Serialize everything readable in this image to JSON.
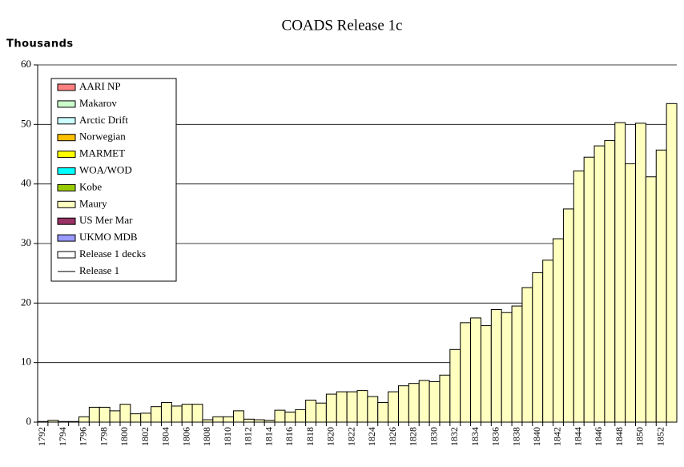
{
  "chart_data": {
    "type": "bar",
    "title": "COADS Release 1c",
    "y_axis_label": "Thousands",
    "categories": [
      "1792",
      null,
      "1794",
      null,
      "1796",
      null,
      "1798",
      null,
      "1800",
      null,
      "1802",
      null,
      "1804",
      null,
      "1806",
      null,
      "1808",
      null,
      "1810",
      null,
      "1812",
      null,
      "1814",
      null,
      "1816",
      null,
      "1818",
      null,
      "1820",
      null,
      "1822",
      null,
      "1824",
      null,
      "1826",
      null,
      "1828",
      null,
      "1830",
      null,
      "1832",
      null,
      "1834",
      null,
      "1836",
      null,
      "1838",
      null,
      "1840",
      null,
      "1842",
      null,
      "1844",
      null,
      "1846",
      null,
      "1848",
      null,
      "1850",
      null,
      "1852",
      null
    ],
    "series": [
      {
        "name": "Maury",
        "color": "#ffffc0",
        "values": [
          0.1,
          0.3,
          0.1,
          0.1,
          0.9,
          2.5,
          2.5,
          1.9,
          3.0,
          1.4,
          1.5,
          2.6,
          3.3,
          2.7,
          3.0,
          3.0,
          0.4,
          0.9,
          0.9,
          1.9,
          0.5,
          0.4,
          0.3,
          2.0,
          1.7,
          2.1,
          3.7,
          3.2,
          4.7,
          5.1,
          5.1,
          5.3,
          4.3,
          3.3,
          5.1,
          6.1,
          6.5,
          7.0,
          6.8,
          7.9,
          12.2,
          16.7,
          17.5,
          16.2,
          18.9,
          18.4,
          19.5,
          22.6,
          25.1,
          27.2,
          30.8,
          35.8,
          42.2,
          44.5,
          46.4,
          47.3,
          50.3,
          43.4,
          50.2,
          41.2,
          45.7,
          53.5
        ]
      }
    ],
    "legend": [
      {
        "name": "AARI NP",
        "color": "#ff8080",
        "kind": "box"
      },
      {
        "name": "Makarov",
        "color": "#ccffcc",
        "kind": "box"
      },
      {
        "name": "Arctic Drift",
        "color": "#ccffff",
        "kind": "box"
      },
      {
        "name": "Norwegian",
        "color": "#ffc000",
        "kind": "box"
      },
      {
        "name": "MARMET",
        "color": "#ffff00",
        "kind": "box"
      },
      {
        "name": "WOA/WOD",
        "color": "#00ffff",
        "kind": "box"
      },
      {
        "name": "Kobe",
        "color": "#99cc00",
        "kind": "box"
      },
      {
        "name": "Maury",
        "color": "#ffffc0",
        "kind": "box"
      },
      {
        "name": "US Mer Mar",
        "color": "#993366",
        "kind": "box"
      },
      {
        "name": "UKMO MDB",
        "color": "#9999ff",
        "kind": "box"
      },
      {
        "name": "Release 1 decks",
        "color": "#ffffff",
        "kind": "box"
      },
      {
        "name": "Release 1",
        "color": "#000000",
        "kind": "line"
      }
    ],
    "ylim": [
      0,
      60
    ],
    "yticks": [
      0,
      10,
      20,
      30,
      40,
      50,
      60
    ],
    "grid": true
  }
}
